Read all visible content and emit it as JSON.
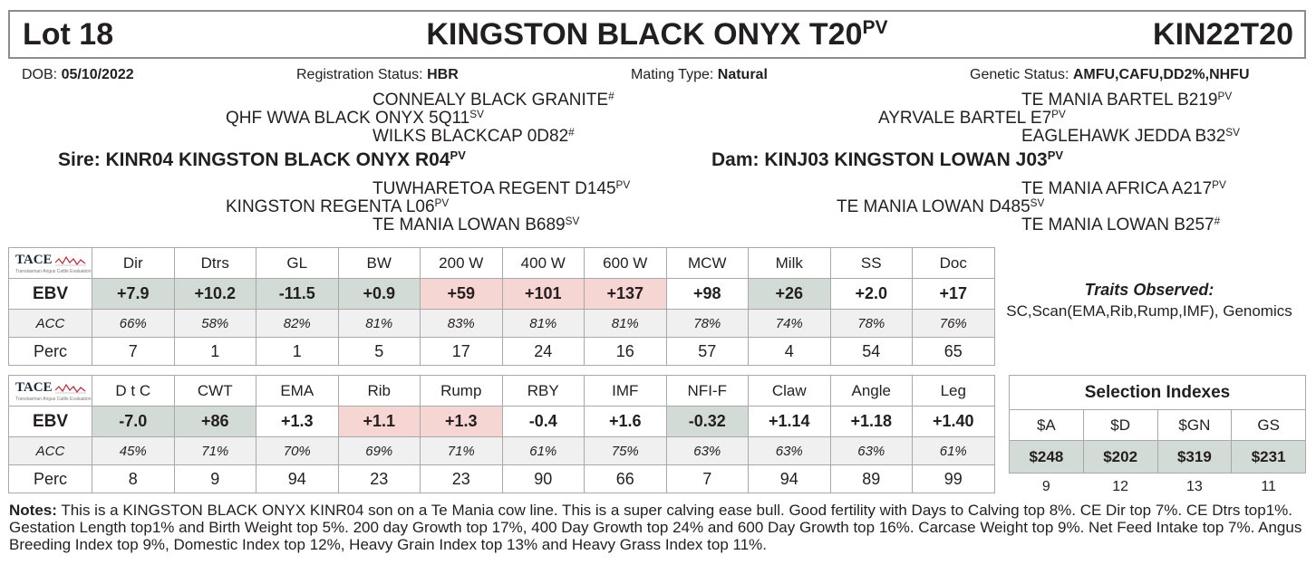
{
  "header": {
    "lot": "Lot 18",
    "name": "KINGSTON BLACK ONYX T20",
    "name_sup": "PV",
    "ident": "KIN22T20"
  },
  "info": {
    "dob_label": "DOB: ",
    "dob": "05/10/2022",
    "reg_label": "Registration Status: ",
    "reg": "HBR",
    "mating_label": "Mating Type: ",
    "mating": "Natural",
    "genetic_label": "Genetic Status: ",
    "genetic": "AMFU,CAFU,DD2%,NHFU"
  },
  "pedigree": {
    "sire_sire_sire": {
      "name": "CONNEALY BLACK GRANITE",
      "sup": "#"
    },
    "sire_sire": {
      "name": "QHF WWA BLACK ONYX 5Q11",
      "sup": "SV"
    },
    "sire_sire_dam": {
      "name": "WILKS BLACKCAP 0D82",
      "sup": "#"
    },
    "sire": {
      "name": "Sire: KINR04 KINGSTON BLACK ONYX R04",
      "sup": "PV"
    },
    "sire_dam_sire": {
      "name": "TUWHARETOA REGENT D145",
      "sup": "PV"
    },
    "sire_dam": {
      "name": "KINGSTON REGENTA L06",
      "sup": "PV"
    },
    "sire_dam_dam": {
      "name": "TE MANIA LOWAN B689",
      "sup": "SV"
    },
    "dam_sire_sire": {
      "name": "TE MANIA BARTEL B219",
      "sup": "PV"
    },
    "dam_sire": {
      "name": "AYRVALE BARTEL E7",
      "sup": "PV"
    },
    "dam_sire_dam": {
      "name": "EAGLEHAWK JEDDA B32",
      "sup": "SV"
    },
    "dam": {
      "name": "Dam: KINJ03 KINGSTON LOWAN J03",
      "sup": "PV"
    },
    "dam_dam_sire": {
      "name": "TE MANIA AFRICA A217",
      "sup": "PV"
    },
    "dam_dam": {
      "name": "TE MANIA LOWAN D485",
      "sup": "SV"
    },
    "dam_dam_dam": {
      "name": "TE MANIA LOWAN B257",
      "sup": "#"
    }
  },
  "tace": {
    "logo": "TACE",
    "sub": "Transtasman Angus Cattle Evaluation"
  },
  "row_labels": {
    "ebv": "EBV",
    "acc": "ACC",
    "perc": "Perc"
  },
  "table1": {
    "traits": [
      "Dir",
      "Dtrs",
      "GL",
      "BW",
      "200 W",
      "400 W",
      "600 W",
      "MCW",
      "Milk",
      "SS",
      "Doc"
    ],
    "ebv": [
      "+7.9",
      "+10.2",
      "-11.5",
      "+0.9",
      "+59",
      "+101",
      "+137",
      "+98",
      "+26",
      "+2.0",
      "+17"
    ],
    "acc": [
      "66%",
      "58%",
      "82%",
      "81%",
      "83%",
      "81%",
      "81%",
      "78%",
      "74%",
      "78%",
      "76%"
    ],
    "perc": [
      "7",
      "1",
      "1",
      "5",
      "17",
      "24",
      "16",
      "57",
      "4",
      "54",
      "65"
    ],
    "highlight": [
      "green",
      "green",
      "green",
      "green",
      "pink",
      "pink",
      "pink",
      "",
      "green",
      "",
      ""
    ]
  },
  "table2": {
    "traits": [
      "D t C",
      "CWT",
      "EMA",
      "Rib",
      "Rump",
      "RBY",
      "IMF",
      "NFI-F",
      "Claw",
      "Angle",
      "Leg"
    ],
    "ebv": [
      "-7.0",
      "+86",
      "+1.3",
      "+1.1",
      "+1.3",
      "-0.4",
      "+1.6",
      "-0.32",
      "+1.14",
      "+1.18",
      "+1.40"
    ],
    "acc": [
      "45%",
      "71%",
      "70%",
      "69%",
      "71%",
      "61%",
      "75%",
      "63%",
      "63%",
      "63%",
      "61%"
    ],
    "perc": [
      "8",
      "9",
      "94",
      "23",
      "23",
      "90",
      "66",
      "7",
      "94",
      "89",
      "99"
    ],
    "highlight": [
      "green",
      "green",
      "",
      "pink",
      "pink",
      "",
      "",
      "green",
      "",
      "",
      ""
    ]
  },
  "traits_observed": {
    "title": "Traits Observed:",
    "text": "SC,Scan(EMA,Rib,Rump,IMF), Genomics"
  },
  "selection_indexes": {
    "title": "Selection Indexes",
    "labels": [
      "$A",
      "$D",
      "$GN",
      "GS"
    ],
    "values": [
      "$248",
      "$202",
      "$319",
      "$231"
    ],
    "perc": [
      "9",
      "12",
      "13",
      "11"
    ]
  },
  "notes": {
    "label": "Notes:",
    "text": " This is a KINGSTON BLACK ONYX KINR04 son on a Te Mania cow line. This is a super calving ease bull. Good fertility with Days to Calving top 8%. CE Dir top 7%. CE Dtrs top1%. Gestation Length top1% and Birth Weight top 5%. 200 day Growth top 17%, 400 Day Growth top 24% and 600 Day Growth top 16%. Carcase Weight top 9%. Net Feed Intake top 7%. Angus Breeding Index top 9%, Domestic Index top 12%, Heavy Grain Index top 13% and Heavy Grass Index top 11%."
  },
  "colors": {
    "pink": "#f6d6d2",
    "green": "#d2dbd5",
    "border": "#a8a8a8"
  }
}
